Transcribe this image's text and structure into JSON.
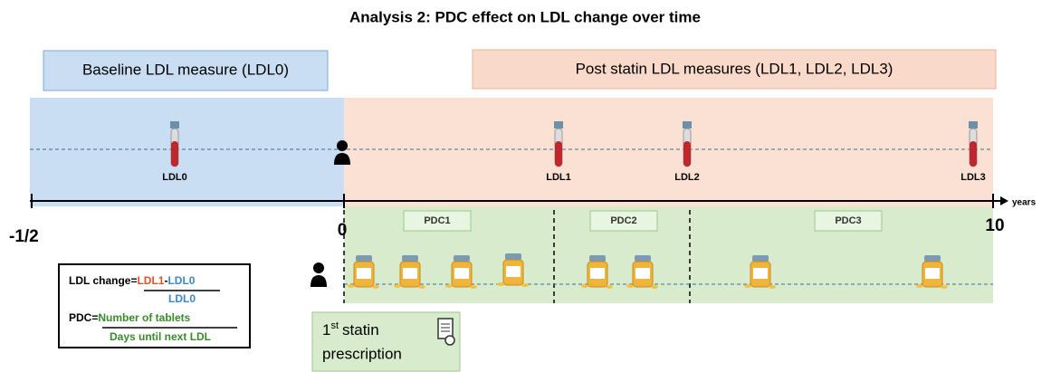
{
  "title": "Analysis 2: PDC effect on LDL change over time",
  "periods": {
    "baseline": "Baseline LDL measure (LDL0)",
    "post": "Post statin LDL measures (LDL1, LDL2, LDL3)"
  },
  "measures": [
    "LDL0",
    "LDL1",
    "LDL2",
    "LDL3"
  ],
  "axis": {
    "start": "-1/2",
    "zero": "0",
    "end": "10",
    "unit": "years"
  },
  "pdc_periods": [
    "PDC1",
    "PDC2",
    "PDC3"
  ],
  "formula": {
    "ldl_change": {
      "label": "LDL change=",
      "minuend": "LDL1",
      "minus": "-",
      "subtrahend": "LDL0",
      "denominator": "LDL0"
    },
    "pdc": {
      "label": "PDC=",
      "numerator": "Number of tablets",
      "denominator": "Days until next LDL"
    }
  },
  "prescription": {
    "number": "1",
    "suffix": "st",
    "line1": "statin",
    "line2": "prescription"
  }
}
